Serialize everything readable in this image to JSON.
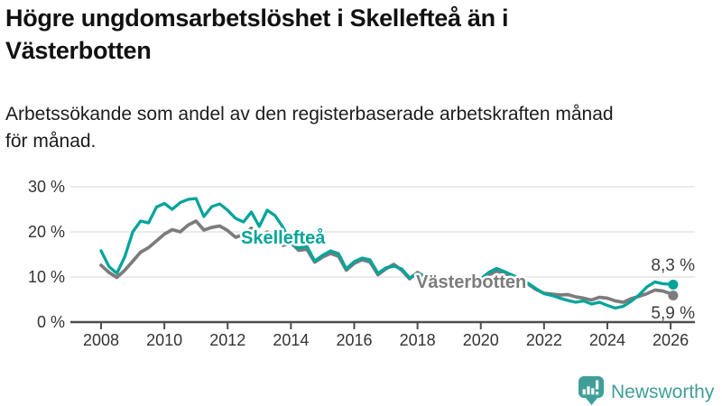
{
  "header": {
    "title": "Högre ungdomsarbetslöshet i Skellefteå än i\nVästerbotten",
    "subtitle": "Arbetssökande som andel av den registerbaserade arbetskraften månad\nför månad."
  },
  "annotations": {
    "skelleftea_label": "Skellefteå",
    "vasterbotten_label": "Västerbotten",
    "end_label_top": "8,3 %",
    "end_label_bottom": "5,9 %"
  },
  "footer": {
    "brand": "Newsworthy",
    "logo_icon": "bar-chart-speech-bubble-icon",
    "brand_color": "#3f9f98"
  },
  "colors": {
    "skelleftea": "#00a49a",
    "vasterbotten": "#7c7c7c",
    "grid": "#dedede",
    "axis": "#4d4d4d",
    "tick_text": "#333333",
    "value_text": "#3c3c3c"
  },
  "chart_data": {
    "type": "line",
    "title": "Högre ungdomsarbetslöshet i Skellefteå än i Västerbotten",
    "subtitle": "Arbetssökande som andel av den registerbaserade arbetskraften månad för månad.",
    "xlabel": "",
    "ylabel": "",
    "xlim": [
      2008,
      2026.3
    ],
    "ylim": [
      0,
      30
    ],
    "grid": "horizontal",
    "legend_position": "inline-labels-on-lines",
    "x_ticks": [
      2008,
      2010,
      2012,
      2014,
      2016,
      2018,
      2020,
      2022,
      2024,
      2026
    ],
    "x_tick_labels": [
      "2008",
      "2010",
      "2012",
      "2014",
      "2016",
      "2018",
      "2020",
      "2022",
      "2024",
      "2026"
    ],
    "y_ticks": [
      0,
      10,
      20,
      30
    ],
    "y_tick_labels": [
      "0 %",
      "10 %",
      "20 %",
      "30 %"
    ],
    "x": [
      2008.0,
      2008.25,
      2008.5,
      2008.75,
      2009.0,
      2009.25,
      2009.5,
      2009.75,
      2010.0,
      2010.25,
      2010.5,
      2010.75,
      2011.0,
      2011.25,
      2011.5,
      2011.75,
      2012.0,
      2012.25,
      2012.5,
      2012.75,
      2013.0,
      2013.25,
      2013.5,
      2013.75,
      2014.0,
      2014.25,
      2014.5,
      2014.75,
      2015.0,
      2015.25,
      2015.5,
      2015.75,
      2016.0,
      2016.25,
      2016.5,
      2016.75,
      2017.0,
      2017.25,
      2017.5,
      2017.75,
      2018.0,
      2018.25,
      2018.5,
      2018.75,
      2019.0,
      2019.25,
      2019.5,
      2019.75,
      2020.0,
      2020.25,
      2020.5,
      2020.75,
      2021.0,
      2021.25,
      2021.5,
      2021.75,
      2022.0,
      2022.25,
      2022.5,
      2022.75,
      2023.0,
      2023.25,
      2023.5,
      2023.75,
      2024.0,
      2024.25,
      2024.5,
      2024.75,
      2025.0,
      2025.25,
      2025.5,
      2025.75,
      2026.0,
      2026.08
    ],
    "series": [
      {
        "name": "Skellefteå",
        "color": "#00a49a",
        "end_value": 8.3,
        "end_label": "8,3 %",
        "values": [
          15.8,
          12.3,
          10.8,
          14.5,
          20.0,
          22.4,
          22.0,
          25.5,
          26.3,
          25.0,
          26.5,
          27.2,
          27.4,
          23.4,
          25.6,
          26.2,
          24.8,
          23.0,
          22.2,
          24.4,
          21.2,
          24.8,
          23.6,
          21.0,
          17.4,
          16.4,
          16.9,
          13.5,
          14.8,
          15.8,
          15.2,
          11.8,
          13.4,
          14.2,
          13.8,
          10.8,
          12.0,
          12.4,
          11.8,
          9.8,
          10.7,
          10.2,
          9.6,
          8.6,
          9.4,
          9.6,
          9.2,
          8.8,
          9.6,
          11.0,
          11.9,
          11.2,
          10.4,
          9.6,
          8.6,
          7.4,
          6.3,
          5.9,
          5.3,
          4.8,
          4.4,
          4.7,
          4.0,
          4.4,
          3.7,
          3.1,
          3.5,
          4.6,
          6.0,
          7.8,
          8.9,
          8.5,
          8.4,
          8.3
        ]
      },
      {
        "name": "Västerbotten",
        "color": "#7c7c7c",
        "end_value": 5.9,
        "end_label": "5,9 %",
        "values": [
          12.6,
          11.0,
          9.9,
          11.5,
          13.5,
          15.5,
          16.5,
          18.0,
          19.5,
          20.5,
          20.0,
          21.5,
          22.4,
          20.4,
          21.0,
          21.3,
          20.3,
          18.8,
          19.4,
          20.8,
          18.2,
          20.0,
          18.8,
          17.0,
          17.6,
          15.9,
          16.2,
          13.3,
          14.4,
          15.2,
          14.6,
          11.5,
          13.0,
          13.8,
          13.3,
          10.5,
          11.8,
          12.8,
          11.5,
          9.6,
          11.0,
          10.0,
          9.3,
          8.5,
          9.2,
          9.4,
          9.0,
          8.6,
          9.4,
          10.4,
          11.3,
          10.8,
          10.1,
          9.4,
          8.4,
          7.2,
          6.4,
          6.2,
          6.0,
          6.1,
          5.6,
          5.3,
          4.9,
          5.5,
          5.3,
          4.7,
          4.4,
          5.2,
          5.7,
          6.3,
          7.1,
          6.9,
          6.3,
          5.9
        ]
      }
    ]
  }
}
